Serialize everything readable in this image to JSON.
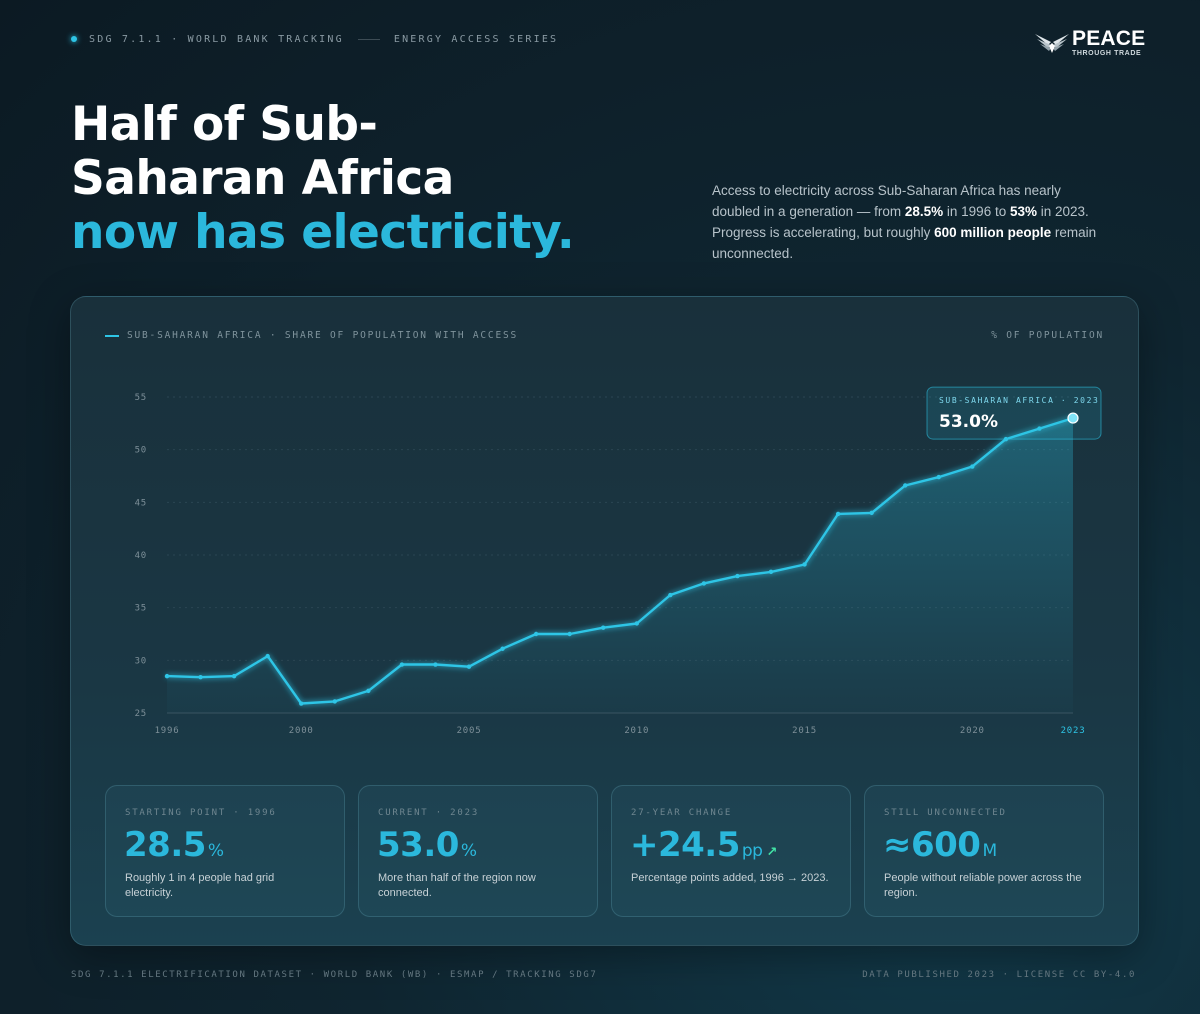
{
  "header": {
    "tracking_label": "SDG 7.1.1 · WORLD BANK TRACKING",
    "series_label": "ENERGY ACCESS SERIES",
    "logo_main": "PEACE",
    "logo_sub": "THROUGH TRADE"
  },
  "headline": {
    "line1": "Half of Sub-",
    "line2": "Saharan Africa",
    "line3": "now has electricity."
  },
  "intro": {
    "p1": "Access to electricity across Sub-Saharan Africa has nearly doubled in a generation — from ",
    "v1": "28.5%",
    "p2": " in 1996 to ",
    "v2": "53%",
    "p3": " in 2023. Progress is accelerating, but roughly ",
    "v3": "600 million people",
    "p4": " remain unconnected."
  },
  "colors": {
    "accent": "#2bb8dc",
    "line": "#2ec5e6",
    "positive": "#42e3a6"
  },
  "chart_data": {
    "type": "area",
    "legend_label": "SUB-SAHARAN AFRICA · SHARE OF POPULATION WITH ACCESS",
    "unit_label": "% OF POPULATION",
    "x": [
      1996,
      1997,
      1998,
      1999,
      2000,
      2001,
      2002,
      2003,
      2004,
      2005,
      2006,
      2007,
      2008,
      2009,
      2010,
      2011,
      2012,
      2013,
      2014,
      2015,
      2016,
      2017,
      2018,
      2019,
      2020,
      2021,
      2022,
      2023
    ],
    "series": [
      {
        "name": "Sub-Saharan Africa",
        "values": [
          28.5,
          28.4,
          28.5,
          30.4,
          25.9,
          26.1,
          27.1,
          29.6,
          29.6,
          29.4,
          31.1,
          32.5,
          32.5,
          33.1,
          33.5,
          36.2,
          37.3,
          38.0,
          38.4,
          39.1,
          43.9,
          44.0,
          46.6,
          47.4,
          48.4,
          51.0,
          52.0,
          53.0
        ]
      }
    ],
    "ylim": [
      25,
      55
    ],
    "yticks": [
      25,
      30,
      35,
      40,
      45,
      50,
      55
    ],
    "xticks": [
      1996,
      2000,
      2005,
      2010,
      2015,
      2020,
      2023
    ],
    "highlight_tick": 2023,
    "grid": true,
    "callout": {
      "label": "SUB-SAHARAN AFRICA · 2023",
      "value": "53.0%"
    }
  },
  "stats": [
    {
      "label": "STARTING POINT · 1996",
      "value": "28.5",
      "unit": "%",
      "arrow": "",
      "desc": "Roughly 1 in 4 people had grid electricity."
    },
    {
      "label": "CURRENT · 2023",
      "value": "53.0",
      "unit": "%",
      "arrow": "",
      "desc": "More than half of the region now connected."
    },
    {
      "label": "27-YEAR CHANGE",
      "value": "+24.5",
      "unit": "pp",
      "arrow": "↗",
      "desc": "Percentage points added, 1996 → 2023."
    },
    {
      "label": "STILL UNCONNECTED",
      "value": "≈600",
      "unit": "M",
      "arrow": "",
      "desc": "People without reliable power across the region."
    }
  ],
  "footer": {
    "left": "SDG 7.1.1 ELECTRIFICATION DATASET · WORLD BANK (WB) · ESMAP / TRACKING SDG7",
    "right": "DATA PUBLISHED 2023 · LICENSE CC BY-4.0"
  }
}
